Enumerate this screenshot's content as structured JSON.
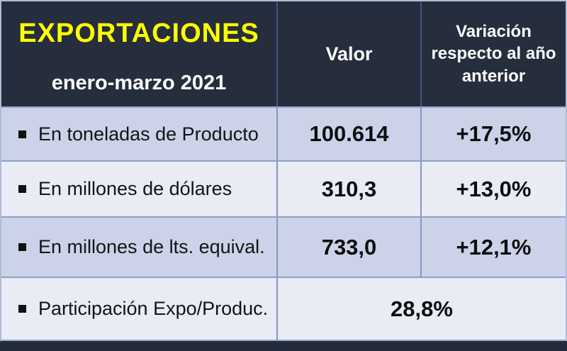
{
  "header": {
    "title": "EXPORTACIONES",
    "subtitle": "enero-marzo 2021",
    "columns": [
      "Valor",
      "Variación respecto al año anterior"
    ]
  },
  "rows": [
    {
      "label": "En toneladas de Producto",
      "valor": "100.614",
      "variacion": "+17,5%"
    },
    {
      "label": "En millones de dólares",
      "valor": "310,3",
      "variacion": "+13,0%"
    },
    {
      "label": "En millones de lts. equival.",
      "valor": "733,0",
      "variacion": "+12,1%"
    },
    {
      "label": "Participación Expo/Produc.",
      "valor": "28,8%"
    }
  ],
  "icons": {
    "bullet": "black-square-bullet"
  },
  "colors": {
    "header_bg": "#262d3c",
    "title_yellow": "#ffff00",
    "header_text": "#ffffff",
    "row_band_dark": "#ccd3e8",
    "row_band_light": "#e9ecf5",
    "grid_line": "#8496c8",
    "outer_border": "#aebcd8",
    "body_text": "#141414"
  },
  "chart_data": {
    "type": "table",
    "title": "EXPORTACIONES",
    "subtitle": "enero-marzo 2021",
    "columns": [
      "",
      "Valor",
      "Variación respecto al año anterior"
    ],
    "rows": [
      [
        "En toneladas de Producto",
        "100.614",
        "+17,5%"
      ],
      [
        "En millones de dólares",
        "310,3",
        "+13,0%"
      ],
      [
        "En millones de lts. equival.",
        "733,0",
        "+12,1%"
      ],
      [
        "Participación Expo/Produc.",
        "28,8%",
        ""
      ]
    ],
    "notes": "Last row value 28,8% spans both value columns; banded row colors alternate"
  }
}
